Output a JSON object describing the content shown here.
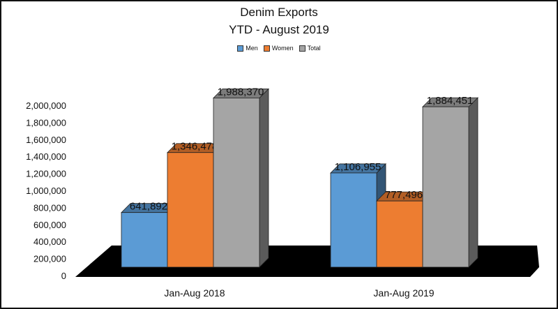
{
  "chart_data": {
    "type": "bar",
    "title": "Denim Exports",
    "subtitle": "YTD - August 2019",
    "categories": [
      "Jan-Aug 2018",
      "Jan-Aug 2019"
    ],
    "series": [
      {
        "name": "Men",
        "values": [
          641892,
          1106955
        ],
        "color": "#5b9bd5"
      },
      {
        "name": "Women",
        "values": [
          1346478,
          777496
        ],
        "color": "#ed7d31"
      },
      {
        "name": "Total",
        "values": [
          1988370,
          1884451
        ],
        "color": "#a5a5a5"
      }
    ],
    "data_labels": [
      [
        "641,892",
        "1,106,955"
      ],
      [
        "1,346,478",
        "777,496"
      ],
      [
        "1,988,370",
        "1,884,451"
      ]
    ],
    "ylim": [
      0,
      2000000
    ],
    "yticks": [
      0,
      200000,
      400000,
      600000,
      800000,
      1000000,
      1200000,
      1400000,
      1600000,
      1800000,
      2000000
    ],
    "ytick_labels": [
      "0",
      "200,000",
      "400,000",
      "600,000",
      "800,000",
      "1,000,000",
      "1,200,000",
      "1,400,000",
      "1,600,000",
      "1,800,000",
      "2,000,000"
    ],
    "legend_position": "top-center",
    "grid": false,
    "style": "3d-clustered-column",
    "floor_color": "#000000"
  }
}
